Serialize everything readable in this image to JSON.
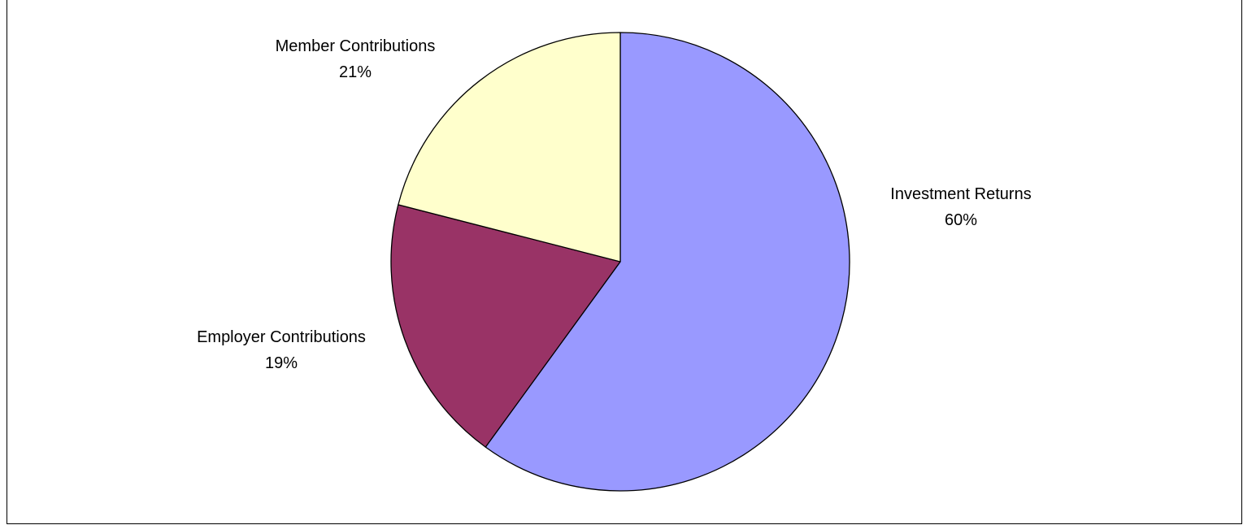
{
  "chart_data": {
    "type": "pie",
    "title": "",
    "slices": [
      {
        "label": "Investment Returns",
        "value": 60,
        "value_label": "60%",
        "color": "#9999FF"
      },
      {
        "label": "Employer Contributions",
        "value": 19,
        "value_label": "19%",
        "color": "#993366"
      },
      {
        "label": "Member Contributions",
        "value": 21,
        "value_label": "21%",
        "color": "#FFFFCC"
      }
    ],
    "start_angle_deg": 0,
    "direction": "clockwise",
    "legend": "none",
    "border_color": "#000000"
  }
}
